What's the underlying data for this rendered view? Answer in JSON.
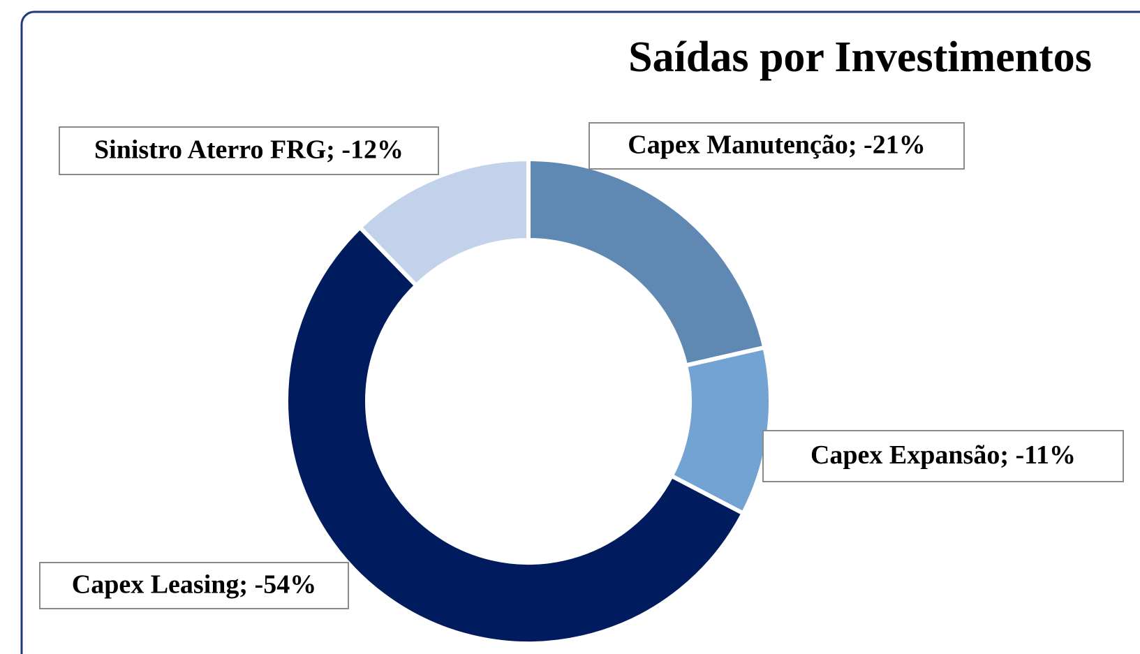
{
  "chart_data": {
    "type": "donut",
    "title": "Saídas por Investimentos",
    "values": [
      -21,
      -11,
      -54,
      -12
    ],
    "value_labels": [
      "Capex Manutenção; -21%",
      "Capex Expansão; -11%",
      "Capex Leasing; -54%",
      "Sinistro Aterro FRG; -12%"
    ],
    "colors": [
      "#5f88b3",
      "#73a3d3",
      "#001b5e",
      "#c2d2ea"
    ]
  }
}
